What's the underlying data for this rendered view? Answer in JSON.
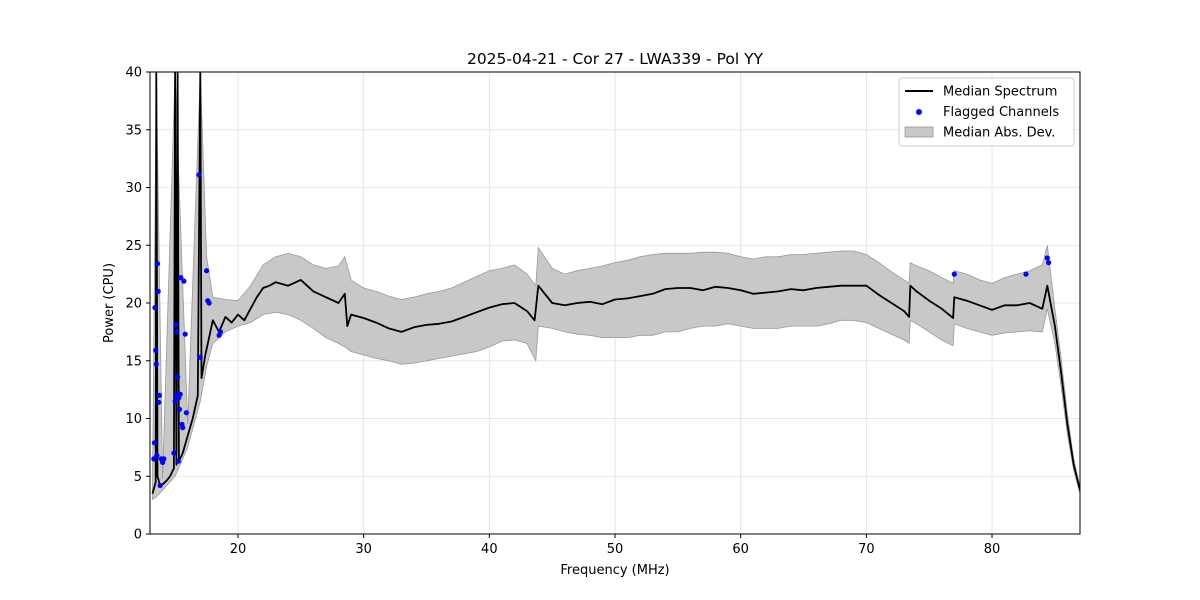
{
  "chart_data": {
    "type": "line",
    "title": "2025-04-21 - Cor 27 - LWA339 - Pol YY",
    "xlabel": "Frequency (MHz)",
    "ylabel": "Power (CPU)",
    "xlim": [
      13.0,
      87.0
    ],
    "ylim": [
      0,
      40
    ],
    "x_ticks": [
      20,
      30,
      40,
      50,
      60,
      70,
      80
    ],
    "y_ticks": [
      0,
      5,
      10,
      15,
      20,
      25,
      30,
      35,
      40
    ],
    "grid": true,
    "legend_position": "top-right",
    "colors": {
      "median": "#000000",
      "flagged": "#0000ff",
      "mad_fill": "#c8c8c8",
      "mad_edge": "#999999"
    },
    "legend": [
      "Median Spectrum",
      "Flagged Channels",
      "Median Abs. Dev."
    ],
    "series": [
      {
        "name": "Median Spectrum",
        "kind": "line",
        "points": [
          [
            13.2,
            3.5
          ],
          [
            13.45,
            4.5
          ],
          [
            13.5,
            40.0
          ],
          [
            13.6,
            5.0
          ],
          [
            13.8,
            4.2
          ],
          [
            14.0,
            4.3
          ],
          [
            14.3,
            4.6
          ],
          [
            14.6,
            5.0
          ],
          [
            14.9,
            5.7
          ],
          [
            15.0,
            40.0
          ],
          [
            15.1,
            6.0
          ],
          [
            15.2,
            40.0
          ],
          [
            15.3,
            6.3
          ],
          [
            15.6,
            7.0
          ],
          [
            16.0,
            8.5
          ],
          [
            16.4,
            10.0
          ],
          [
            16.8,
            12.0
          ],
          [
            17.0,
            40.0
          ],
          [
            17.1,
            13.5
          ],
          [
            17.4,
            15.5
          ],
          [
            17.7,
            17.0
          ],
          [
            18.0,
            18.5
          ],
          [
            18.5,
            17.5
          ],
          [
            19.0,
            18.8
          ],
          [
            19.5,
            18.3
          ],
          [
            20.0,
            19.0
          ],
          [
            20.5,
            18.5
          ],
          [
            21.0,
            19.5
          ],
          [
            21.5,
            20.5
          ],
          [
            22.0,
            21.3
          ],
          [
            22.5,
            21.5
          ],
          [
            23.0,
            21.8
          ],
          [
            24.0,
            21.5
          ],
          [
            25.0,
            22.0
          ],
          [
            26.0,
            21.0
          ],
          [
            27.0,
            20.5
          ],
          [
            28.0,
            20.0
          ],
          [
            28.5,
            20.8
          ],
          [
            28.7,
            18.0
          ],
          [
            29.0,
            19.0
          ],
          [
            30.0,
            18.7
          ],
          [
            31.0,
            18.3
          ],
          [
            32.0,
            17.8
          ],
          [
            33.0,
            17.5
          ],
          [
            34.0,
            17.9
          ],
          [
            35.0,
            18.1
          ],
          [
            36.0,
            18.2
          ],
          [
            37.0,
            18.4
          ],
          [
            38.0,
            18.8
          ],
          [
            39.0,
            19.2
          ],
          [
            40.0,
            19.6
          ],
          [
            41.0,
            19.9
          ],
          [
            42.0,
            20.0
          ],
          [
            43.0,
            19.3
          ],
          [
            43.6,
            18.5
          ],
          [
            43.9,
            21.5
          ],
          [
            45.0,
            20.0
          ],
          [
            46.0,
            19.8
          ],
          [
            47.0,
            20.0
          ],
          [
            48.0,
            20.1
          ],
          [
            49.0,
            19.9
          ],
          [
            50.0,
            20.3
          ],
          [
            51.0,
            20.4
          ],
          [
            52.0,
            20.6
          ],
          [
            53.0,
            20.8
          ],
          [
            54.0,
            21.2
          ],
          [
            55.0,
            21.3
          ],
          [
            56.0,
            21.3
          ],
          [
            57.0,
            21.1
          ],
          [
            58.0,
            21.4
          ],
          [
            59.0,
            21.3
          ],
          [
            60.0,
            21.1
          ],
          [
            61.0,
            20.8
          ],
          [
            62.0,
            20.9
          ],
          [
            63.0,
            21.0
          ],
          [
            64.0,
            21.2
          ],
          [
            65.0,
            21.1
          ],
          [
            66.0,
            21.3
          ],
          [
            67.0,
            21.4
          ],
          [
            68.0,
            21.5
          ],
          [
            69.0,
            21.5
          ],
          [
            70.0,
            21.5
          ],
          [
            71.0,
            20.7
          ],
          [
            72.0,
            20.0
          ],
          [
            73.0,
            19.3
          ],
          [
            73.4,
            18.8
          ],
          [
            73.5,
            21.5
          ],
          [
            74.0,
            21.0
          ],
          [
            75.0,
            20.2
          ],
          [
            76.0,
            19.5
          ],
          [
            76.9,
            18.7
          ],
          [
            77.0,
            20.5
          ],
          [
            78.0,
            20.2
          ],
          [
            79.0,
            19.8
          ],
          [
            80.0,
            19.4
          ],
          [
            81.0,
            19.8
          ],
          [
            82.0,
            19.8
          ],
          [
            83.0,
            20.0
          ],
          [
            84.0,
            19.5
          ],
          [
            84.4,
            21.5
          ],
          [
            85.0,
            18.0
          ],
          [
            85.5,
            14.0
          ],
          [
            86.0,
            9.5
          ],
          [
            86.5,
            6.0
          ],
          [
            87.0,
            3.8
          ]
        ]
      },
      {
        "name": "Median Abs. Dev.",
        "kind": "band",
        "points": [
          [
            13.2,
            3.0,
            4.0
          ],
          [
            13.5,
            3.2,
            40.0
          ],
          [
            14.0,
            3.8,
            4.8
          ],
          [
            15.0,
            5.0,
            40.0
          ],
          [
            16.0,
            7.5,
            9.5
          ],
          [
            17.0,
            11.5,
            40.0
          ],
          [
            17.5,
            14.5,
            24.0
          ],
          [
            18.0,
            16.5,
            20.5
          ],
          [
            19.0,
            17.5,
            20.3
          ],
          [
            20.0,
            18.0,
            20.2
          ],
          [
            21.0,
            18.3,
            21.5
          ],
          [
            22.0,
            19.0,
            23.3
          ],
          [
            23.0,
            19.2,
            24.0
          ],
          [
            24.0,
            19.0,
            24.3
          ],
          [
            25.0,
            18.5,
            24.0
          ],
          [
            26.0,
            17.8,
            23.3
          ],
          [
            27.0,
            17.0,
            23.0
          ],
          [
            28.0,
            16.5,
            23.2
          ],
          [
            28.5,
            16.2,
            24.0
          ],
          [
            29.0,
            15.8,
            22.0
          ],
          [
            30.0,
            15.5,
            21.3
          ],
          [
            31.0,
            15.2,
            21.0
          ],
          [
            32.0,
            15.0,
            20.6
          ],
          [
            33.0,
            14.7,
            20.3
          ],
          [
            34.0,
            14.8,
            20.5
          ],
          [
            35.0,
            15.0,
            20.8
          ],
          [
            36.0,
            15.2,
            21.0
          ],
          [
            37.0,
            15.4,
            21.3
          ],
          [
            38.0,
            15.6,
            21.8
          ],
          [
            39.0,
            15.8,
            22.3
          ],
          [
            40.0,
            16.2,
            22.8
          ],
          [
            41.0,
            16.7,
            23.0
          ],
          [
            42.0,
            16.8,
            23.3
          ],
          [
            43.0,
            16.5,
            22.5
          ],
          [
            43.7,
            15.0,
            21.5
          ],
          [
            43.9,
            18.0,
            24.8
          ],
          [
            45.0,
            17.8,
            23.0
          ],
          [
            46.0,
            17.5,
            22.5
          ],
          [
            47.0,
            17.3,
            22.8
          ],
          [
            48.0,
            17.2,
            23.0
          ],
          [
            49.0,
            17.0,
            23.2
          ],
          [
            50.0,
            17.0,
            23.5
          ],
          [
            51.0,
            17.0,
            23.7
          ],
          [
            52.0,
            17.2,
            24.0
          ],
          [
            53.0,
            17.2,
            24.2
          ],
          [
            54.0,
            17.5,
            24.3
          ],
          [
            55.0,
            17.5,
            24.3
          ],
          [
            56.0,
            17.8,
            24.3
          ],
          [
            57.0,
            18.0,
            24.4
          ],
          [
            58.0,
            18.0,
            24.4
          ],
          [
            59.0,
            18.2,
            24.3
          ],
          [
            60.0,
            18.0,
            24.0
          ],
          [
            61.0,
            17.8,
            23.8
          ],
          [
            62.0,
            17.8,
            24.0
          ],
          [
            63.0,
            17.8,
            24.0
          ],
          [
            64.0,
            18.0,
            24.2
          ],
          [
            65.0,
            18.0,
            24.2
          ],
          [
            66.0,
            18.0,
            24.3
          ],
          [
            67.0,
            18.2,
            24.4
          ],
          [
            68.0,
            18.5,
            24.5
          ],
          [
            69.0,
            18.5,
            24.5
          ],
          [
            70.0,
            18.3,
            24.2
          ],
          [
            71.0,
            17.8,
            23.5
          ],
          [
            72.0,
            17.3,
            22.7
          ],
          [
            73.0,
            16.8,
            22.0
          ],
          [
            73.4,
            16.5,
            21.7
          ],
          [
            73.5,
            18.5,
            23.5
          ],
          [
            74.0,
            18.2,
            23.2
          ],
          [
            75.0,
            17.5,
            22.8
          ],
          [
            76.0,
            16.8,
            22.2
          ],
          [
            76.9,
            16.3,
            21.7
          ],
          [
            77.0,
            18.2,
            22.8
          ],
          [
            78.0,
            17.8,
            22.5
          ],
          [
            79.0,
            17.5,
            22.0
          ],
          [
            80.0,
            17.2,
            21.7
          ],
          [
            81.0,
            17.4,
            22.2
          ],
          [
            82.0,
            17.5,
            22.5
          ],
          [
            83.0,
            17.6,
            22.8
          ],
          [
            84.0,
            17.5,
            23.3
          ],
          [
            84.4,
            19.5,
            25.0
          ],
          [
            85.0,
            16.5,
            19.5
          ],
          [
            85.5,
            12.8,
            15.2
          ],
          [
            86.0,
            8.6,
            10.4
          ],
          [
            86.5,
            5.5,
            6.5
          ],
          [
            87.0,
            3.5,
            4.1
          ]
        ]
      },
      {
        "name": "Flagged Channels",
        "kind": "scatter",
        "points": [
          [
            13.3,
            6.5
          ],
          [
            13.35,
            7.9
          ],
          [
            13.4,
            19.6
          ],
          [
            13.45,
            15.9
          ],
          [
            13.5,
            14.7
          ],
          [
            13.55,
            6.8
          ],
          [
            13.6,
            23.4
          ],
          [
            13.65,
            21.0
          ],
          [
            13.7,
            11.4
          ],
          [
            13.75,
            12.0
          ],
          [
            13.8,
            4.2
          ],
          [
            13.9,
            6.5
          ],
          [
            14.0,
            6.2
          ],
          [
            14.1,
            6.5
          ],
          [
            14.9,
            7.0
          ],
          [
            15.0,
            11.5
          ],
          [
            15.05,
            18.1
          ],
          [
            15.1,
            12.0
          ],
          [
            15.15,
            17.5
          ],
          [
            15.2,
            13.6
          ],
          [
            15.25,
            6.3
          ],
          [
            15.3,
            11.8
          ],
          [
            15.35,
            10.8
          ],
          [
            15.4,
            12.1
          ],
          [
            15.45,
            22.2
          ],
          [
            15.55,
            9.5
          ],
          [
            15.6,
            9.2
          ],
          [
            15.7,
            21.9
          ],
          [
            15.8,
            17.3
          ],
          [
            15.9,
            10.5
          ],
          [
            16.9,
            31.1
          ],
          [
            17.0,
            15.3
          ],
          [
            17.5,
            22.8
          ],
          [
            17.6,
            20.2
          ],
          [
            17.7,
            20.0
          ],
          [
            18.5,
            17.2
          ],
          [
            18.6,
            17.5
          ],
          [
            77.0,
            22.5
          ],
          [
            82.7,
            22.5
          ],
          [
            84.4,
            23.9
          ],
          [
            84.5,
            23.5
          ]
        ]
      }
    ]
  }
}
